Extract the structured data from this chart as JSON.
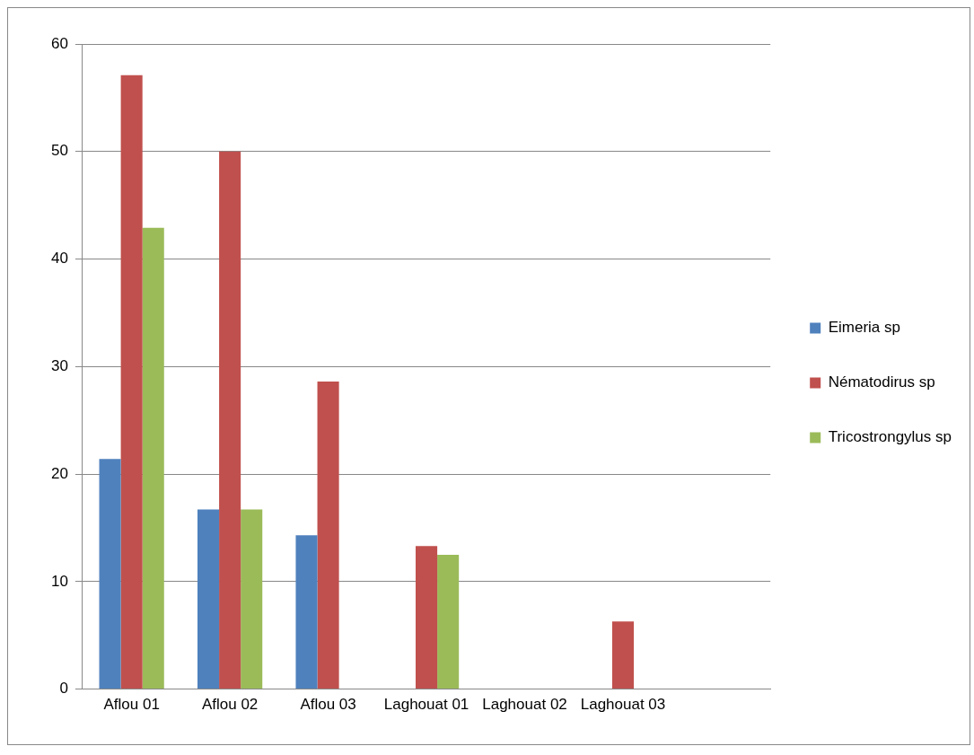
{
  "chart_data": {
    "type": "bar",
    "categories": [
      "Aflou 01",
      "Aflou 02",
      "Aflou 03",
      "Laghouat 01",
      "Laghouat 02",
      "Laghouat 03",
      null
    ],
    "series": [
      {
        "name": "Eimeria sp",
        "color": "#4f81bd",
        "values": [
          21.4,
          16.7,
          14.3,
          0,
          0,
          0,
          null
        ]
      },
      {
        "name": "Nématodirus sp",
        "color": "#c0504d",
        "values": [
          57.1,
          50,
          28.6,
          13.3,
          0,
          6.3,
          null
        ]
      },
      {
        "name": "Tricostrongylus sp",
        "color": "#9bbb59",
        "values": [
          42.9,
          16.7,
          0,
          12.5,
          0,
          0,
          null
        ]
      }
    ],
    "ylim": [
      0,
      60
    ],
    "yticks": [
      0,
      10,
      20,
      30,
      40,
      50,
      60
    ],
    "grid": "y",
    "legend": "right"
  }
}
